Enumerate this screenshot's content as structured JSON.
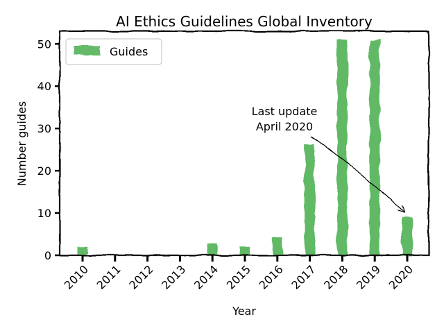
{
  "chart_data": {
    "type": "bar",
    "title": "AI Ethics Guidelines Global Inventory",
    "xlabel": "Year",
    "ylabel": "Number guides",
    "categories": [
      "2010",
      "2011",
      "2012",
      "2013",
      "2014",
      "2015",
      "2016",
      "2017",
      "2018",
      "2019",
      "2020"
    ],
    "series": [
      {
        "name": "Guides",
        "values": [
          2,
          0,
          0,
          0,
          3,
          2,
          4,
          26,
          51,
          51,
          9
        ]
      }
    ],
    "ylim": [
      0,
      53
    ],
    "yticks": [
      0,
      10,
      20,
      30,
      40,
      50
    ],
    "grid": false,
    "legend": "top-left",
    "bar_color": "#4caf50",
    "style": "xkcd",
    "annotation": {
      "line1": "Last update",
      "line2": "April 2020",
      "target_category": "2020",
      "target_value": 10
    }
  }
}
